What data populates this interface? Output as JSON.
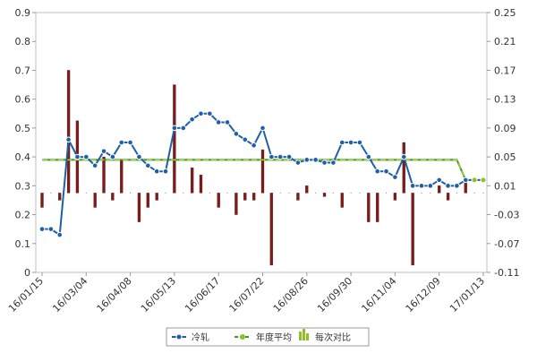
{
  "chart_data": {
    "type": "line",
    "left_axis": {
      "ticks": [
        "0",
        "0.1",
        "0.2",
        "0.3",
        "0.4",
        "0.5",
        "0.6",
        "0.7",
        "0.8",
        "0.9"
      ],
      "min": 0,
      "max": 0.9
    },
    "right_axis": {
      "ticks": [
        "-0.11",
        "-0.07",
        "-0.03",
        "0.01",
        "0.05",
        "0.09",
        "0.13",
        "0.17",
        "0.21",
        "0.25"
      ],
      "min": -0.11,
      "max": 0.25
    },
    "x_tick_labels": [
      "16/01/15",
      "16/03/04",
      "16/04/08",
      "16/05/13",
      "16/06/17",
      "16/07/22",
      "16/08/26",
      "16/09/30",
      "16/11/04",
      "16/12/09",
      "17/01/13"
    ],
    "grid": false,
    "legend_position": "bottom",
    "series": [
      {
        "name": "冷轧",
        "color": "#1e5fa8",
        "axis": "left",
        "values": [
          0.15,
          0.15,
          0.13,
          0.46,
          0.4,
          0.4,
          0.37,
          0.42,
          0.4,
          0.45,
          0.45,
          0.4,
          0.37,
          0.35,
          0.35,
          0.5,
          0.5,
          0.53,
          0.55,
          0.55,
          0.52,
          0.52,
          0.48,
          0.46,
          0.44,
          0.5,
          0.4,
          0.4,
          0.4,
          0.38,
          0.39,
          0.39,
          0.38,
          0.38,
          0.45,
          0.45,
          0.45,
          0.4,
          0.35,
          0.35,
          0.33,
          0.4,
          0.3,
          0.3,
          0.3,
          0.32,
          0.3,
          0.3,
          0.32,
          0.32,
          0.32
        ]
      },
      {
        "name": "年度平均",
        "color": "#3c9a1c",
        "axis": "left",
        "values": [
          0.39,
          0.39,
          0.39,
          0.39,
          0.39,
          0.39,
          0.39,
          0.39,
          0.39,
          0.39,
          0.39,
          0.39,
          0.39,
          0.39,
          0.39,
          0.39,
          0.39,
          0.39,
          0.39,
          0.39,
          0.39,
          0.39,
          0.39,
          0.39,
          0.39,
          0.39,
          0.39,
          0.39,
          0.39,
          0.39,
          0.39,
          0.39,
          0.39,
          0.39,
          0.39,
          0.39,
          0.39,
          0.39,
          0.39,
          0.39,
          0.39,
          0.39,
          0.39,
          0.39,
          0.39,
          0.39,
          0.39,
          0.39,
          0.32,
          0.32,
          0.32
        ]
      },
      {
        "name": "每次对比",
        "color": "#7a1c1c",
        "axis": "right",
        "type": "bar",
        "values": [
          -0.02,
          0,
          -0.01,
          0.17,
          0.1,
          0,
          -0.02,
          0.05,
          -0.01,
          0.045,
          0,
          -0.04,
          -0.02,
          -0.01,
          0,
          0.15,
          0,
          0.035,
          0.025,
          0,
          -0.02,
          0,
          -0.03,
          -0.01,
          -0.01,
          0.06,
          -0.1,
          0,
          0,
          -0.01,
          0.01,
          0,
          -0.005,
          0,
          -0.02,
          0,
          0,
          -0.04,
          -0.04,
          0,
          -0.01,
          0.07,
          -0.1,
          0,
          0,
          0.01,
          -0.01,
          0,
          0.02,
          0,
          0
        ]
      }
    ]
  }
}
